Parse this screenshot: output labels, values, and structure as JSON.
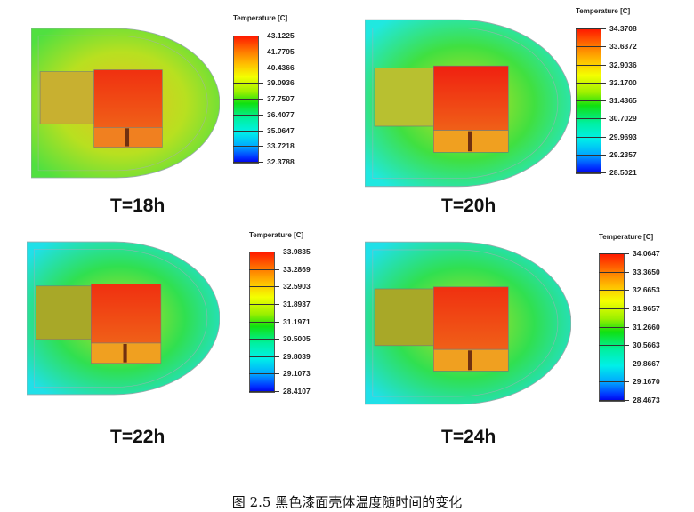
{
  "panels": [
    {
      "time_label": "T=18h",
      "legend_title": "Temperature [C]",
      "legend_values": [
        "43.1225",
        "41.7795",
        "40.4366",
        "39.0936",
        "37.7507",
        "36.4077",
        "35.0647",
        "33.7218",
        "32.3788"
      ],
      "colors": {
        "center": "#e8c020",
        "mid": "#b8e020",
        "edge": "#50e040",
        "left_box": "#c8b030",
        "hot": "#f03010",
        "warm": "#f08020"
      }
    },
    {
      "time_label": "T=20h",
      "legend_title": "Temperature [C]",
      "legend_values": [
        "34.3708",
        "33.6372",
        "32.9036",
        "32.1700",
        "31.4365",
        "30.7029",
        "29.9693",
        "29.2357",
        "28.5021"
      ],
      "colors": {
        "center": "#d8e020",
        "mid": "#40e040",
        "edge": "#20e8e0",
        "left_box": "#b8c030",
        "hot": "#f02010",
        "warm": "#f0a020"
      }
    },
    {
      "time_label": "T=22h",
      "legend_title": "Temperature [C]",
      "legend_values": [
        "33.9835",
        "33.2869",
        "32.5903",
        "31.8937",
        "31.1971",
        "30.5005",
        "29.8039",
        "29.1073",
        "28.4107"
      ],
      "colors": {
        "center": "#c8e020",
        "mid": "#30e050",
        "edge": "#20e0e8",
        "left_box": "#a8a828",
        "hot": "#f03010",
        "warm": "#f0a020"
      }
    },
    {
      "time_label": "T=24h",
      "legend_title": "Temperature [C]",
      "legend_values": [
        "34.0647",
        "33.3650",
        "32.6653",
        "31.9657",
        "31.2660",
        "30.5663",
        "29.8667",
        "29.1670",
        "28.4673"
      ],
      "colors": {
        "center": "#c8e020",
        "mid": "#30e050",
        "edge": "#20e0e8",
        "left_box": "#a8a828",
        "hot": "#f03010",
        "warm": "#f0a020"
      }
    }
  ],
  "caption": "图 2.5  黑色漆面壳体温度随时间的变化"
}
